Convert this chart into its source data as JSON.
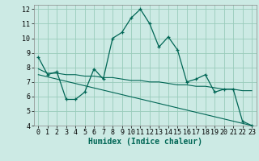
{
  "xlabel": "Humidex (Indice chaleur)",
  "bg_color": "#cceae4",
  "grid_color": "#99ccbb",
  "line_color": "#006655",
  "xlim": [
    -0.5,
    23.5
  ],
  "ylim": [
    4,
    12.3
  ],
  "xticks": [
    0,
    1,
    2,
    3,
    4,
    5,
    6,
    7,
    8,
    9,
    10,
    11,
    12,
    13,
    14,
    15,
    16,
    17,
    18,
    19,
    20,
    21,
    22,
    23
  ],
  "yticks": [
    4,
    5,
    6,
    7,
    8,
    9,
    10,
    11,
    12
  ],
  "series1_x": [
    0,
    1,
    2,
    3,
    4,
    5,
    6,
    7,
    8,
    9,
    10,
    11,
    12,
    13,
    14,
    15,
    16,
    17,
    18,
    19,
    20,
    21,
    22,
    23
  ],
  "series1_y": [
    8.7,
    7.5,
    7.7,
    5.8,
    5.8,
    6.3,
    7.9,
    7.2,
    10.0,
    10.4,
    11.4,
    12.0,
    11.0,
    9.4,
    10.1,
    9.2,
    7.0,
    7.2,
    7.5,
    6.3,
    6.5,
    6.5,
    4.3,
    4.0
  ],
  "series2_x": [
    0,
    1,
    2,
    3,
    4,
    5,
    6,
    7,
    8,
    9,
    10,
    11,
    12,
    13,
    14,
    15,
    16,
    17,
    18,
    19,
    20,
    21,
    22,
    23
  ],
  "series2_y": [
    7.9,
    7.6,
    7.6,
    7.5,
    7.5,
    7.4,
    7.4,
    7.3,
    7.3,
    7.2,
    7.1,
    7.1,
    7.0,
    7.0,
    6.9,
    6.8,
    6.8,
    6.7,
    6.7,
    6.6,
    6.5,
    6.5,
    6.4,
    6.4
  ],
  "series3_x": [
    0,
    23
  ],
  "series3_y": [
    7.5,
    4.0
  ],
  "tick_fontsize": 6,
  "label_fontsize": 7
}
